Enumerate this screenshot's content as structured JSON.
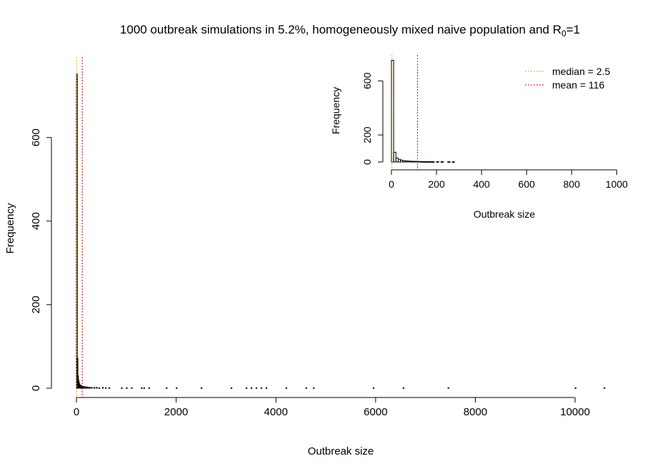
{
  "title": {
    "prefix": "1000 outbreak simulations in 5.2%, homogeneously mixed naive population and R",
    "subscript": "0",
    "suffix": "=1"
  },
  "colors": {
    "median": "#e8a317",
    "mean": "#cc0000",
    "bars": "#000000"
  },
  "chart_data": [
    {
      "name": "main-histogram",
      "type": "bar",
      "xlabel": "Outbreak size",
      "ylabel": "Frequency",
      "xlim": [
        0,
        10600
      ],
      "ylim": [
        0,
        760
      ],
      "xticks": [
        0,
        2000,
        4000,
        6000,
        8000,
        10000
      ],
      "xtick_labels": [
        "0",
        "2000",
        "4000",
        "6000",
        "8000",
        "10000"
      ],
      "yticks": [
        0,
        200,
        400,
        600
      ],
      "ytick_labels": [
        "0",
        "200",
        "400",
        "600"
      ],
      "bin_width": 10,
      "bins": [
        {
          "x": 0,
          "count": 752
        },
        {
          "x": 10,
          "count": 72
        },
        {
          "x": 20,
          "count": 30
        },
        {
          "x": 30,
          "count": 20
        },
        {
          "x": 40,
          "count": 14
        },
        {
          "x": 50,
          "count": 10
        },
        {
          "x": 60,
          "count": 8
        },
        {
          "x": 70,
          "count": 7
        },
        {
          "x": 80,
          "count": 6
        },
        {
          "x": 90,
          "count": 5
        },
        {
          "x": 100,
          "count": 5
        },
        {
          "x": 120,
          "count": 4
        },
        {
          "x": 140,
          "count": 4
        },
        {
          "x": 160,
          "count": 3
        },
        {
          "x": 180,
          "count": 3
        },
        {
          "x": 200,
          "count": 3
        },
        {
          "x": 230,
          "count": 2
        },
        {
          "x": 260,
          "count": 2
        },
        {
          "x": 300,
          "count": 2
        },
        {
          "x": 350,
          "count": 2
        },
        {
          "x": 400,
          "count": 2
        },
        {
          "x": 450,
          "count": 1
        },
        {
          "x": 520,
          "count": 2
        },
        {
          "x": 580,
          "count": 1
        },
        {
          "x": 650,
          "count": 1
        },
        {
          "x": 900,
          "count": 1
        },
        {
          "x": 1000,
          "count": 1
        },
        {
          "x": 1100,
          "count": 1
        },
        {
          "x": 1300,
          "count": 1
        },
        {
          "x": 1350,
          "count": 1
        },
        {
          "x": 1450,
          "count": 1
        },
        {
          "x": 1800,
          "count": 1
        },
        {
          "x": 2000,
          "count": 1
        },
        {
          "x": 2500,
          "count": 1
        },
        {
          "x": 3100,
          "count": 1
        },
        {
          "x": 3400,
          "count": 1
        },
        {
          "x": 3500,
          "count": 1
        },
        {
          "x": 3600,
          "count": 1
        },
        {
          "x": 3700,
          "count": 1
        },
        {
          "x": 3800,
          "count": 1
        },
        {
          "x": 4200,
          "count": 1
        },
        {
          "x": 4600,
          "count": 1
        },
        {
          "x": 4750,
          "count": 1
        },
        {
          "x": 5950,
          "count": 1
        },
        {
          "x": 6550,
          "count": 1
        },
        {
          "x": 7450,
          "count": 1
        },
        {
          "x": 10000,
          "count": 1
        },
        {
          "x": 10580,
          "count": 1
        }
      ],
      "median": 2.5,
      "mean": 116
    },
    {
      "name": "inset-histogram",
      "type": "bar",
      "xlabel": "Outbreak size",
      "ylabel": "Frequency",
      "xlim": [
        0,
        1040
      ],
      "ylim": [
        0,
        760
      ],
      "xticks": [
        0,
        200,
        400,
        600,
        800,
        1000
      ],
      "xtick_labels": [
        "0",
        "200",
        "400",
        "600",
        "800",
        "1000"
      ],
      "yticks": [
        0,
        200,
        600
      ],
      "ytick_labels": [
        "0",
        "200",
        "600"
      ],
      "bin_width": 10,
      "bins": [
        {
          "x": 0,
          "count": 752
        },
        {
          "x": 10,
          "count": 72
        },
        {
          "x": 20,
          "count": 30
        },
        {
          "x": 30,
          "count": 20
        },
        {
          "x": 40,
          "count": 14
        },
        {
          "x": 50,
          "count": 10
        },
        {
          "x": 60,
          "count": 8
        },
        {
          "x": 70,
          "count": 7
        },
        {
          "x": 80,
          "count": 6
        },
        {
          "x": 90,
          "count": 5
        },
        {
          "x": 100,
          "count": 5
        },
        {
          "x": 110,
          "count": 4
        },
        {
          "x": 120,
          "count": 4
        },
        {
          "x": 130,
          "count": 3
        },
        {
          "x": 140,
          "count": 3
        },
        {
          "x": 150,
          "count": 2
        },
        {
          "x": 160,
          "count": 3
        },
        {
          "x": 170,
          "count": 2
        },
        {
          "x": 180,
          "count": 2
        },
        {
          "x": 200,
          "count": 3
        },
        {
          "x": 220,
          "count": 2
        },
        {
          "x": 250,
          "count": 2
        },
        {
          "x": 270,
          "count": 1
        }
      ],
      "median": 2.5,
      "mean": 116,
      "legend": {
        "position": "top-right",
        "entries": [
          "median = 2.5",
          "mean = 116"
        ]
      }
    }
  ]
}
